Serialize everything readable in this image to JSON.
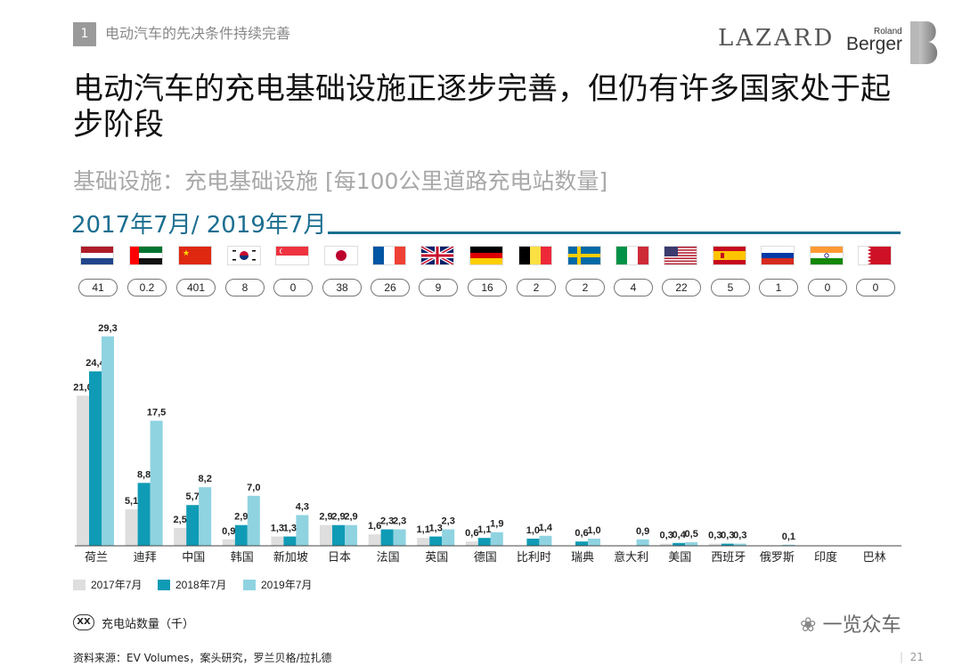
{
  "header": {
    "section_number": "1",
    "section_title": "电动汽车的先决条件持续完善",
    "logo_lazard": "LAZARD",
    "logo_roland": "Roland",
    "logo_berger": "Berger"
  },
  "title": "电动汽车的充电基础设施正逐步完善，但仍有许多国家处于起步阶段",
  "subtitle": "基础设施：充电基础设施 [每100公里道路充电站数量]",
  "period": "2017年7月/ 2019年7月",
  "countries": [
    {
      "name": "荷兰",
      "flag": "netherlands-flag",
      "badge": "41"
    },
    {
      "name": "迪拜",
      "flag": "uae-flag",
      "badge": "0.2"
    },
    {
      "name": "中国",
      "flag": "china-flag",
      "badge": "401"
    },
    {
      "name": "韩国",
      "flag": "south-korea-flag",
      "badge": "8"
    },
    {
      "name": "新加坡",
      "flag": "singapore-flag",
      "badge": "0"
    },
    {
      "name": "日本",
      "flag": "japan-flag",
      "badge": "38"
    },
    {
      "name": "法国",
      "flag": "france-flag",
      "badge": "26"
    },
    {
      "name": "英国",
      "flag": "uk-flag",
      "badge": "9"
    },
    {
      "name": "德国",
      "flag": "germany-flag",
      "badge": "16"
    },
    {
      "name": "比利时",
      "flag": "belgium-flag",
      "badge": "2"
    },
    {
      "name": "瑞典",
      "flag": "sweden-flag",
      "badge": "2"
    },
    {
      "name": "意大利",
      "flag": "italy-flag",
      "badge": "4"
    },
    {
      "name": "美国",
      "flag": "usa-flag",
      "badge": "22"
    },
    {
      "name": "西班牙",
      "flag": "spain-flag",
      "badge": "5"
    },
    {
      "name": "俄罗斯",
      "flag": "russia-flag",
      "badge": "1"
    },
    {
      "name": "印度",
      "flag": "india-flag",
      "badge": "0"
    },
    {
      "name": "巴林",
      "flag": "bahrain-flag",
      "badge": "0"
    }
  ],
  "chart_data": {
    "type": "bar",
    "categories": [
      "荷兰",
      "迪拜",
      "中国",
      "韩国",
      "新加坡",
      "日本",
      "法国",
      "英国",
      "德国",
      "比利时",
      "瑞典",
      "意大利",
      "美国",
      "西班牙",
      "俄罗斯",
      "印度",
      "巴林"
    ],
    "series": [
      {
        "name": "2017年7月",
        "color": "#dedede",
        "values": [
          21.0,
          5.1,
          2.5,
          0.9,
          1.3,
          2.9,
          1.6,
          1.1,
          0.6,
          null,
          null,
          null,
          0.3,
          0.3,
          null,
          null,
          null
        ],
        "labels": [
          "21,0",
          "5,1",
          "2,5",
          "0,9",
          "1,3",
          "2,9",
          "1,6",
          "1,1",
          "0,6",
          "",
          "",
          "",
          "0,3",
          "0,3",
          "",
          "",
          ""
        ]
      },
      {
        "name": "2018年7月",
        "color": "#0f9bb5",
        "values": [
          24.4,
          8.8,
          5.7,
          2.9,
          1.3,
          2.9,
          2.3,
          1.3,
          1.1,
          1.0,
          0.6,
          null,
          0.4,
          0.3,
          null,
          null,
          null
        ],
        "labels": [
          "24,4",
          "8,8",
          "5,7",
          "2,9",
          "1,3",
          "2,9",
          "2,3",
          "1,3",
          "1,1",
          "1,0",
          "0,6",
          "",
          "0,4",
          "0,3",
          "",
          "",
          ""
        ]
      },
      {
        "name": "2019年7月",
        "color": "#8fd3e1",
        "values": [
          29.3,
          17.5,
          8.2,
          7.0,
          4.3,
          2.9,
          2.3,
          2.3,
          1.9,
          1.4,
          1.0,
          0.9,
          0.5,
          0.3,
          0.1,
          null,
          null
        ],
        "labels": [
          "29,3",
          "17,5",
          "8,2",
          "7,0",
          "4,3",
          "2,9",
          "2,3",
          "2,3",
          "1,9",
          "1,4",
          "1,0",
          "0,9",
          "0,5",
          "0,3",
          "0,1",
          "",
          ""
        ]
      }
    ],
    "ylim": [
      0,
      30
    ],
    "legend_position": "bottom-left",
    "grid": false
  },
  "note_icon_text": "XX",
  "note": "充电站数量（千）",
  "source": "资料来源：EV Volumes，案头研究，罗兰贝格/拉扎德",
  "watermark": "一览众车",
  "page_number": "21",
  "colors": {
    "accent": "#1b6e90",
    "bar2017": "#dedede",
    "bar2018": "#0f9bb5",
    "bar2019": "#8fd3e1"
  }
}
